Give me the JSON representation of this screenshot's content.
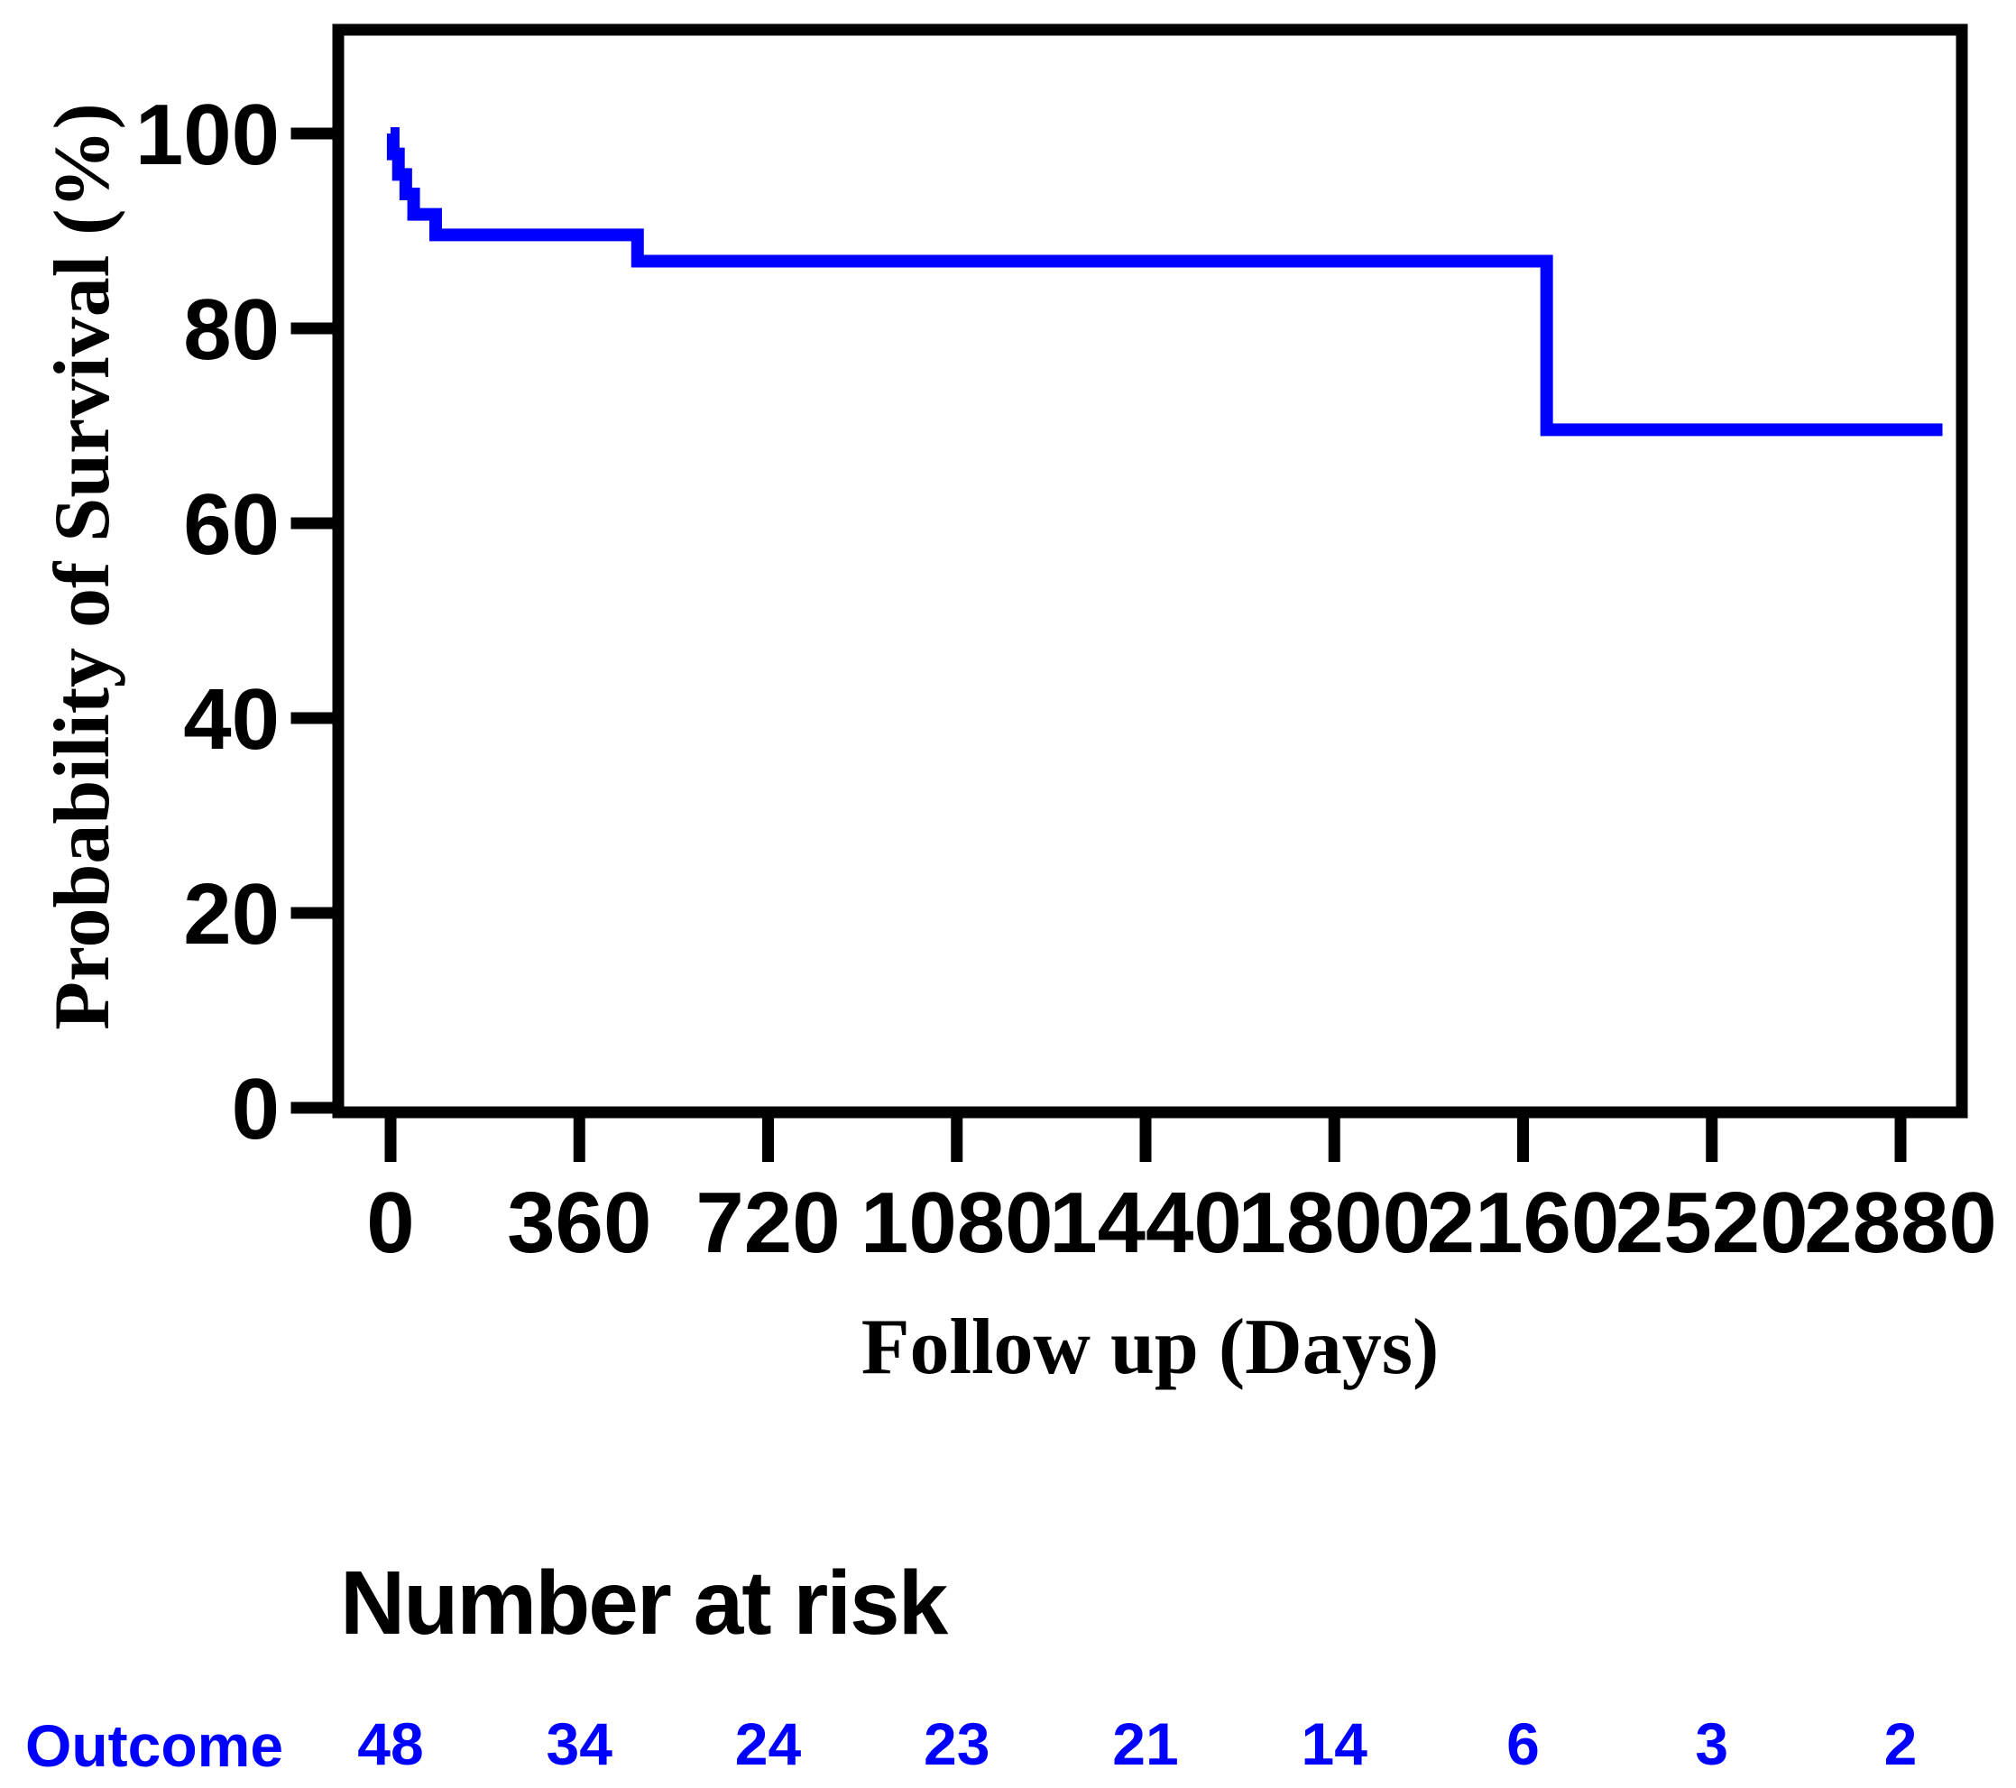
{
  "chart_data": {
    "type": "line",
    "subtype": "kaplan-meier-step",
    "title": "",
    "xlabel": "Follow up (Days)",
    "ylabel": "Probability of Survival (%)",
    "x_ticks": [
      0,
      360,
      720,
      1080,
      1440,
      1800,
      2160,
      2520,
      2880
    ],
    "y_ticks": [
      0,
      20,
      40,
      60,
      80,
      100
    ],
    "xlim": [
      -100,
      3000
    ],
    "ylim": [
      0,
      110
    ],
    "grid": false,
    "legend": "none",
    "series": [
      {
        "name": "Outcome",
        "color": "#0000ff",
        "step_points": [
          {
            "t": 0,
            "s": 100
          },
          {
            "t": 5,
            "s": 97.9
          },
          {
            "t": 15,
            "s": 95.8
          },
          {
            "t": 29,
            "s": 93.8
          },
          {
            "t": 44,
            "s": 91.7
          },
          {
            "t": 86,
            "s": 89.6
          },
          {
            "t": 471,
            "s": 86.9
          },
          {
            "t": 2205,
            "s": 69.6
          }
        ],
        "end_t": 2960
      }
    ]
  },
  "risk_table": {
    "title": "Number at risk",
    "rows": [
      {
        "label": "Outcome",
        "color": "#0000ff",
        "times": [
          0,
          360,
          720,
          1080,
          1440,
          1800,
          2160,
          2520,
          2880
        ],
        "values": [
          "48",
          "34",
          "24",
          "23",
          "21",
          "14",
          "6",
          "3",
          "2"
        ]
      }
    ]
  },
  "colors": {
    "curve": "#0000ff",
    "axis": "#000000",
    "background": "#ffffff"
  }
}
